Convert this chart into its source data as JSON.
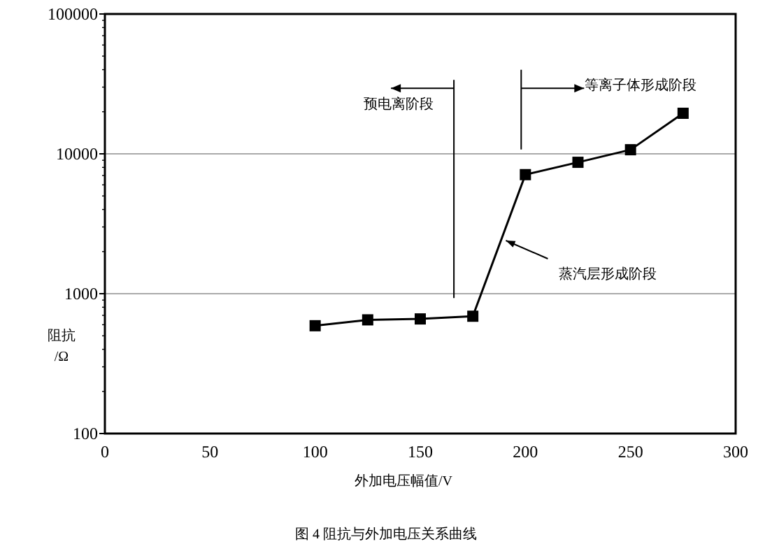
{
  "chart_data": {
    "type": "line",
    "title": "图 4 阻抗与外加电压关系曲线",
    "xlabel": "外加电压幅值/V",
    "ylabel": "阻抗\n/Ω",
    "x": [
      100,
      125,
      150,
      175,
      200,
      225,
      250,
      275
    ],
    "series": [
      {
        "color": "#000000",
        "values": [
          590,
          650,
          660,
          690,
          7100,
          8700,
          10700,
          19500
        ]
      }
    ],
    "xlim": [
      0,
      300
    ],
    "xticks": [
      0,
      50,
      100,
      150,
      200,
      250,
      300
    ],
    "ylim": [
      100,
      100000
    ],
    "yticks": [
      100,
      1000,
      10000,
      100000
    ],
    "log": true,
    "grid": "y",
    "marker": "square",
    "line_style": "solid",
    "ref_lines": [
      {
        "axis": "x",
        "value": 166
      },
      {
        "axis": "x",
        "value": 198
      }
    ],
    "annotations": [
      "预电离阶段",
      "等离子体形成阶段",
      "蒸汽层形成阶段"
    ]
  }
}
